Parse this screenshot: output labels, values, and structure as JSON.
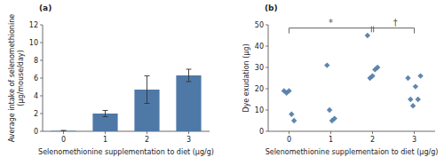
{
  "chart_data": [
    {
      "type": "bar",
      "title": "(a)",
      "x_label": "Selenomethionine supplementation to diet (μg/g)",
      "y_label": "Average intake of selenomethionine\n(μg/mouse/day)",
      "x": [
        0,
        1,
        2,
        3
      ],
      "values": [
        0.05,
        2.0,
        4.7,
        6.3
      ],
      "errors": [
        0.05,
        0.35,
        1.55,
        0.7
      ],
      "color": "#4e79a7",
      "xlim": [
        -0.5,
        3.5
      ],
      "xticks": [
        0,
        1,
        2,
        3
      ],
      "ylim": [
        0,
        12
      ],
      "yticks": [
        0,
        2,
        4,
        6,
        8,
        10,
        12
      ],
      "grid": false
    },
    {
      "type": "scatter",
      "title": "(b)",
      "x_label": "Selenomethionine supplementaion to diet (μg/g)",
      "y_label": "Dye exudation (μg)",
      "x": [
        0,
        0,
        0,
        0,
        0,
        1,
        1,
        1,
        1,
        2,
        2,
        2,
        2,
        2,
        3,
        3,
        3,
        3,
        3,
        3
      ],
      "values": [
        19,
        18,
        19,
        8,
        5,
        31,
        10,
        5,
        6,
        45,
        25,
        26,
        29,
        30,
        25,
        15,
        12,
        21,
        15,
        26
      ],
      "color": "#4e79a7",
      "marker": "diamond",
      "xlim": [
        -0.5,
        3.5
      ],
      "xticks": [
        0,
        1,
        2,
        3
      ],
      "ylim": [
        0,
        50
      ],
      "yticks": [
        0,
        10,
        20,
        30,
        40,
        50
      ],
      "grid": false,
      "bracket": {
        "x_left": 0,
        "x_mid": 2,
        "x_right": 3,
        "y": 48.5
      },
      "annotations": [
        {
          "text": "*",
          "x": 1.0
        },
        {
          "text": "†",
          "x": 2.55
        }
      ]
    }
  ]
}
